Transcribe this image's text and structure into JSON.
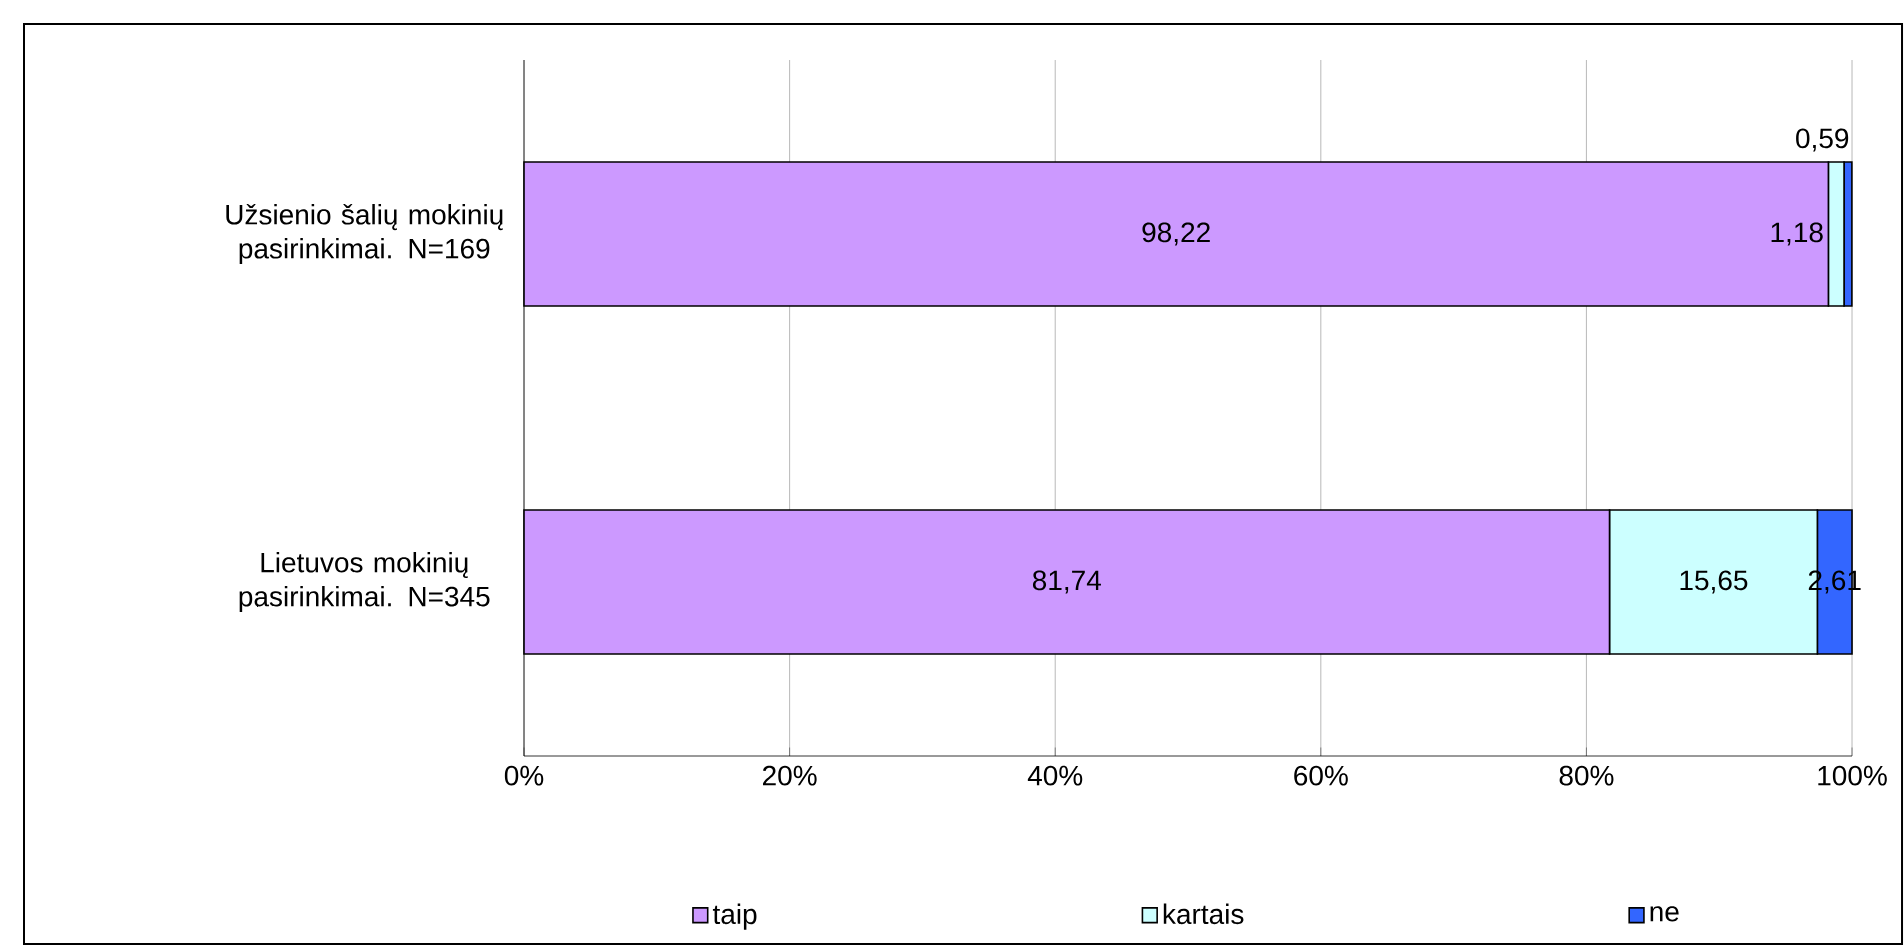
{
  "chart_data": {
    "type": "bar",
    "orientation": "horizontal",
    "stacked": true,
    "categories": [
      "Užsienio šalių mokinių pasirinkimai. N=169",
      "Lietuvos mokinių pasirinkimai. N=345"
    ],
    "series": [
      {
        "name": "taip",
        "color": "#cc99ff",
        "values": [
          98.22,
          81.74
        ],
        "value_labels": [
          "98,22",
          "81,74"
        ]
      },
      {
        "name": "kartais",
        "color": "#ccffff",
        "values": [
          1.18,
          15.65
        ],
        "value_labels": [
          "1,18",
          "15,65"
        ]
      },
      {
        "name": "ne",
        "color": "#3366ff",
        "values": [
          0.59,
          2.61
        ],
        "value_labels": [
          "0,59",
          "2,61"
        ]
      }
    ],
    "xlim": [
      0,
      100
    ],
    "xticks": [
      {
        "value": 0,
        "label": "0%"
      },
      {
        "value": 20,
        "label": "20%"
      },
      {
        "value": 40,
        "label": "40%"
      },
      {
        "value": 60,
        "label": "60%"
      },
      {
        "value": 80,
        "label": "80%"
      },
      {
        "value": 100,
        "label": "100%"
      }
    ],
    "grid": "x",
    "legend": "bottom"
  }
}
